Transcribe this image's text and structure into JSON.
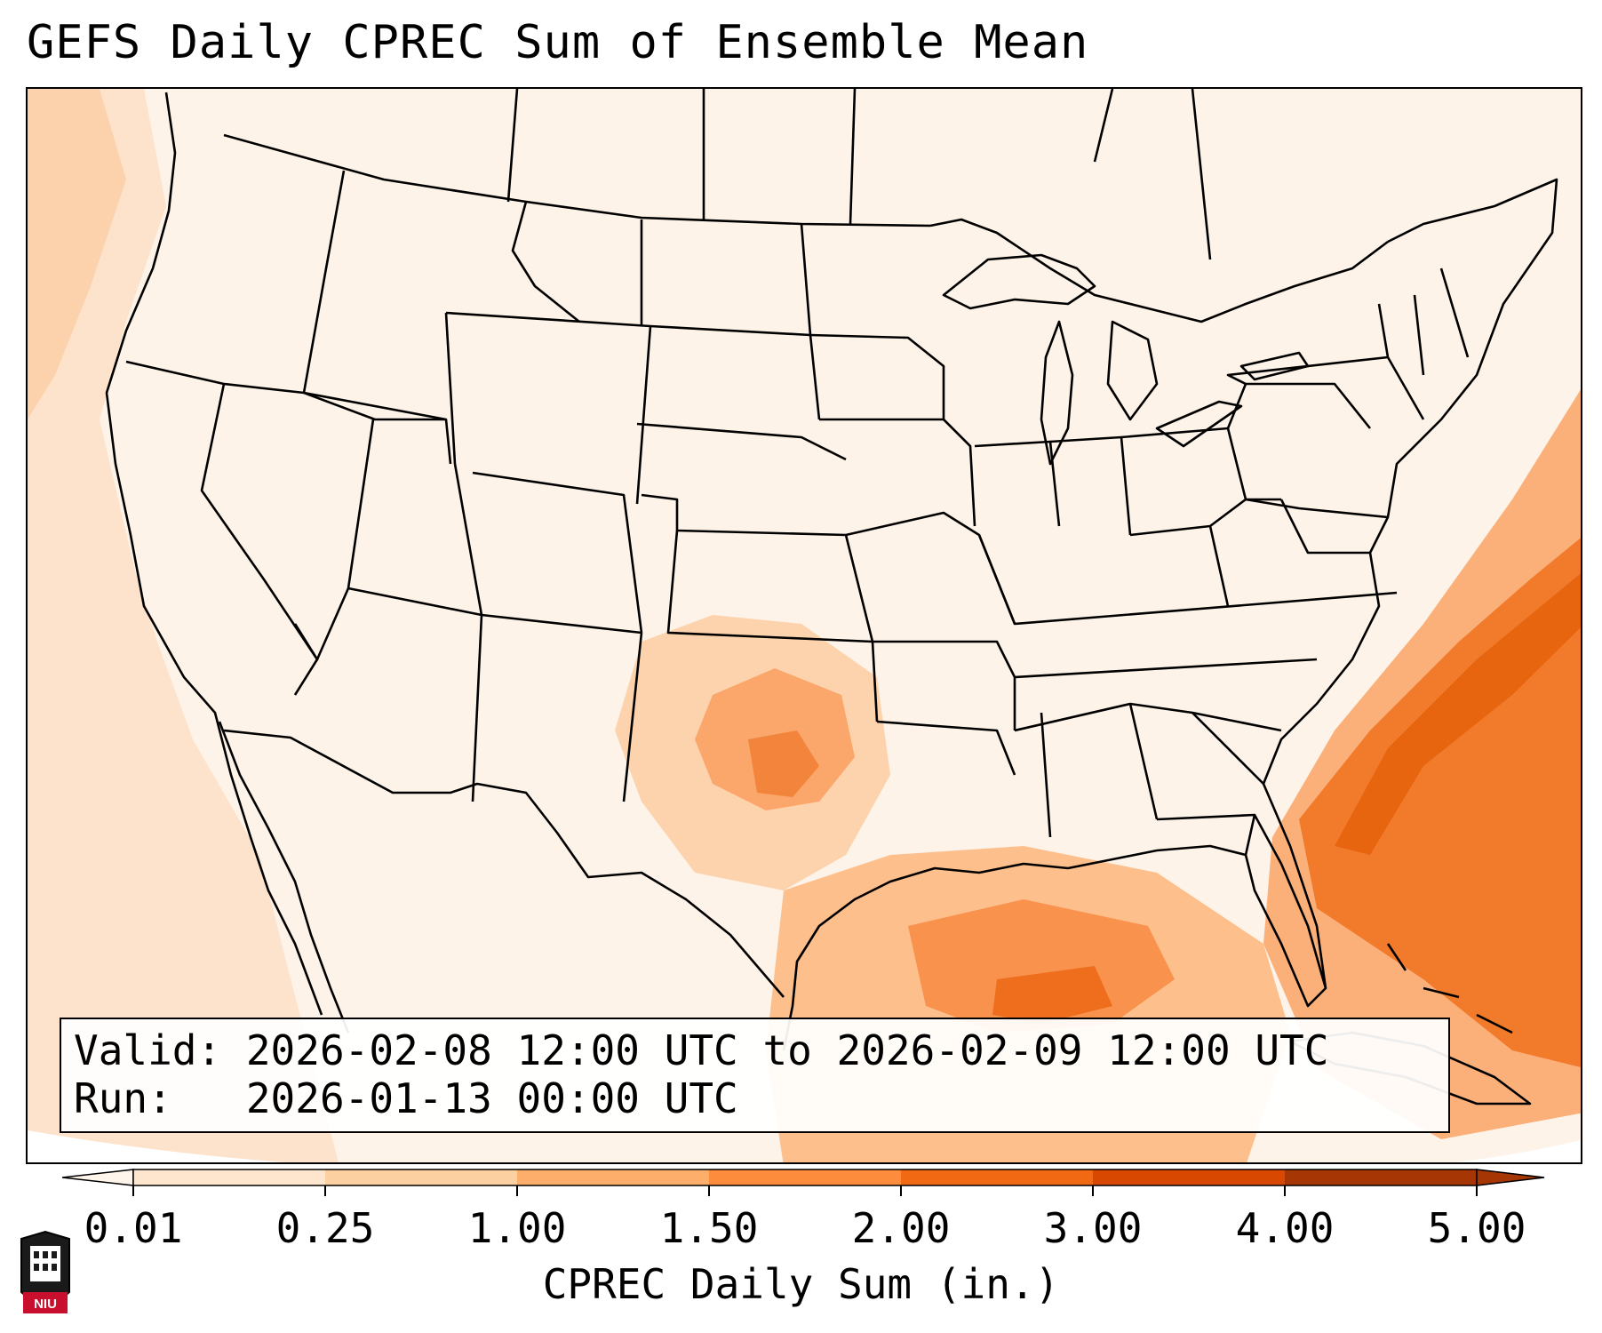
{
  "title": "GEFS Daily CPREC Sum of Ensemble Mean",
  "info": {
    "valid_line": "Valid: 2026-02-08 12:00 UTC to 2026-02-09 12:00 UTC",
    "run_line": "Run:   2026-01-13 00:00 UTC"
  },
  "colorbar": {
    "label": "CPREC Daily Sum (in.)",
    "ticks": [
      "0.01",
      "0.25",
      "1.00",
      "1.50",
      "2.00",
      "3.00",
      "4.00",
      "5.00"
    ],
    "colors": [
      "#fff5eb",
      "#fee6ce",
      "#fdd0a2",
      "#fdae6b",
      "#fd8d3c",
      "#f16913",
      "#d94801",
      "#a63603"
    ],
    "extend": "both"
  },
  "logo": {
    "text": "NIU"
  },
  "colors": {
    "border": "#000000",
    "ocean_pale": "#fee8d5",
    "heavy": "#e8650f"
  }
}
